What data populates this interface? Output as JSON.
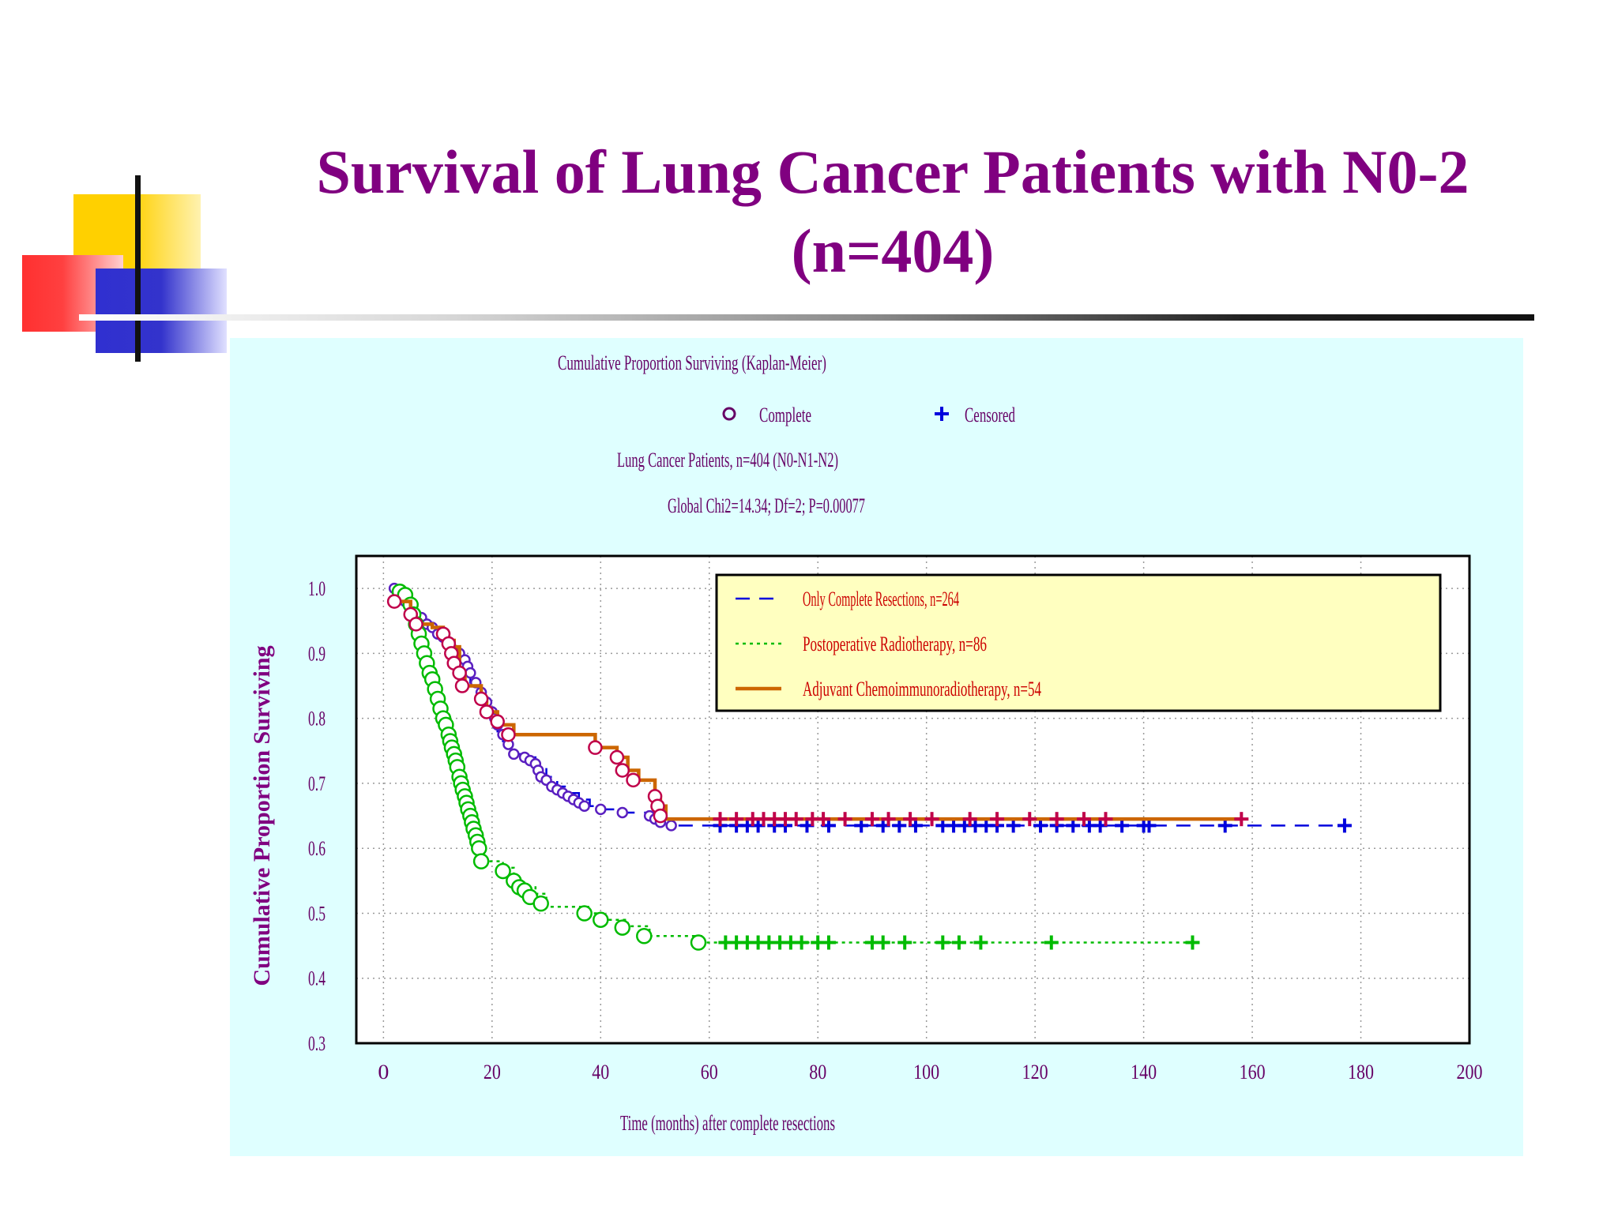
{
  "slide": {
    "title": "Survival of Lung Cancer Patients with N0-2\n(n=404)"
  },
  "colors": {
    "title": "#800080",
    "panel_background": "#dfffff",
    "legend_background": "#ffffc0",
    "series_blue": "#0000dd",
    "series_green": "#00bb00",
    "series_orange": "#cc6600",
    "complete_markers_blue_series": "#5a1fc0",
    "complete_markers_orange_series": "#c0004a",
    "censored_orange_series": "#c0004a"
  },
  "chart_data": {
    "type": "line",
    "subtype": "kaplan-meier step survival curves",
    "title": "Cumulative Proportion Surviving (Kaplan-Meier)",
    "marker_key": [
      {
        "symbol": "circle",
        "label": "Complete"
      },
      {
        "symbol": "plus",
        "label": "Censored"
      }
    ],
    "subtitle_lines": [
      "Lung Cancer Patients, n=404 (N0-N1-N2)",
      "Global Chi2=14.34; Df=2; P=0.00077"
    ],
    "xlabel": "Time (months) after complete resections",
    "ylabel": "Cumulative Proportion Surviving",
    "xlim": [
      -5,
      200
    ],
    "ylim": [
      0.3,
      1.05
    ],
    "xticks": [
      0,
      20,
      40,
      60,
      80,
      100,
      120,
      140,
      160,
      180,
      200
    ],
    "yticks": [
      0.3,
      0.4,
      0.5,
      0.6,
      0.7,
      0.8,
      0.9,
      1.0
    ],
    "xtick_labels": [
      "0",
      "20",
      "40",
      "60",
      "80",
      "100",
      "120",
      "140",
      "160",
      "180",
      "200"
    ],
    "ytick_labels": [
      "0.3",
      "0.4",
      "0.5",
      "0.6",
      "0.7",
      "0.8",
      "0.9",
      "1.0"
    ],
    "grid": true,
    "legend_position": "top-right",
    "series": [
      {
        "name": "Only Complete Resections,  n=264",
        "line_style": "dashed",
        "color": "#0000dd",
        "marker_color": "#5a1fc0",
        "steps": [
          [
            2,
            1.0
          ],
          [
            4,
            0.98
          ],
          [
            5,
            0.97
          ],
          [
            6,
            0.96
          ],
          [
            7,
            0.95
          ],
          [
            8,
            0.94
          ],
          [
            9,
            0.935
          ],
          [
            10,
            0.925
          ],
          [
            11,
            0.915
          ],
          [
            12,
            0.905
          ],
          [
            13,
            0.895
          ],
          [
            14,
            0.885
          ],
          [
            15,
            0.87
          ],
          [
            16,
            0.855
          ],
          [
            17,
            0.84
          ],
          [
            18,
            0.825
          ],
          [
            19,
            0.81
          ],
          [
            20,
            0.795
          ],
          [
            21,
            0.78
          ],
          [
            22,
            0.765
          ],
          [
            23,
            0.75
          ],
          [
            24,
            0.745
          ],
          [
            26,
            0.74
          ],
          [
            28,
            0.73
          ],
          [
            30,
            0.71
          ],
          [
            32,
            0.695
          ],
          [
            34,
            0.685
          ],
          [
            36,
            0.675
          ],
          [
            38,
            0.665
          ],
          [
            40,
            0.66
          ],
          [
            44,
            0.655
          ],
          [
            50,
            0.645
          ],
          [
            53,
            0.635
          ],
          [
            177,
            0.635
          ]
        ],
        "complete_events": [
          [
            2,
            1.0
          ],
          [
            3,
            0.99
          ],
          [
            4,
            0.98
          ],
          [
            5,
            0.975
          ],
          [
            6,
            0.96
          ],
          [
            7,
            0.955
          ],
          [
            8,
            0.945
          ],
          [
            9,
            0.94
          ],
          [
            10,
            0.93
          ],
          [
            11,
            0.925
          ],
          [
            12,
            0.915
          ],
          [
            13,
            0.905
          ],
          [
            14,
            0.9
          ],
          [
            15,
            0.89
          ],
          [
            15.5,
            0.88
          ],
          [
            16,
            0.87
          ],
          [
            17,
            0.855
          ],
          [
            18,
            0.84
          ],
          [
            19,
            0.825
          ],
          [
            20,
            0.81
          ],
          [
            20.5,
            0.8
          ],
          [
            21,
            0.79
          ],
          [
            22,
            0.775
          ],
          [
            23,
            0.76
          ],
          [
            24,
            0.745
          ],
          [
            26,
            0.74
          ],
          [
            27,
            0.735
          ],
          [
            28,
            0.73
          ],
          [
            28.5,
            0.72
          ],
          [
            29,
            0.71
          ],
          [
            30,
            0.705
          ],
          [
            31,
            0.695
          ],
          [
            32,
            0.69
          ],
          [
            33,
            0.685
          ],
          [
            34,
            0.68
          ],
          [
            35,
            0.675
          ],
          [
            36,
            0.67
          ],
          [
            37,
            0.665
          ],
          [
            40,
            0.66
          ],
          [
            44,
            0.655
          ],
          [
            49,
            0.65
          ],
          [
            50,
            0.645
          ],
          [
            51,
            0.64
          ],
          [
            53,
            0.635
          ]
        ],
        "censored": [
          62,
          65,
          67,
          69,
          72,
          74,
          78,
          82,
          88,
          92,
          95,
          98,
          103,
          105,
          107,
          109,
          111,
          113,
          116,
          121,
          124,
          127,
          130,
          132,
          136,
          140,
          141,
          155,
          177
        ]
      },
      {
        "name": "Postoperative Radiotherapy,  n=86",
        "line_style": "dotted",
        "color": "#00bb00",
        "marker_color": "#00bb00",
        "steps": [
          [
            3,
            1.0
          ],
          [
            4,
            0.99
          ],
          [
            5,
            0.96
          ],
          [
            6,
            0.93
          ],
          [
            7,
            0.9
          ],
          [
            8,
            0.87
          ],
          [
            9,
            0.84
          ],
          [
            10,
            0.81
          ],
          [
            11,
            0.78
          ],
          [
            12,
            0.75
          ],
          [
            13,
            0.72
          ],
          [
            14,
            0.7
          ],
          [
            15,
            0.67
          ],
          [
            16,
            0.64
          ],
          [
            17,
            0.6
          ],
          [
            18,
            0.58
          ],
          [
            22,
            0.57
          ],
          [
            24,
            0.55
          ],
          [
            26,
            0.54
          ],
          [
            28,
            0.53
          ],
          [
            30,
            0.51
          ],
          [
            38,
            0.5
          ],
          [
            41,
            0.49
          ],
          [
            45,
            0.48
          ],
          [
            49,
            0.465
          ],
          [
            59,
            0.455
          ],
          [
            149,
            0.455
          ]
        ],
        "complete_events": [
          [
            3,
            0.995
          ],
          [
            4,
            0.99
          ],
          [
            5,
            0.975
          ],
          [
            5.5,
            0.96
          ],
          [
            6,
            0.945
          ],
          [
            6.5,
            0.93
          ],
          [
            7,
            0.915
          ],
          [
            7.5,
            0.9
          ],
          [
            8,
            0.885
          ],
          [
            8.5,
            0.87
          ],
          [
            9,
            0.86
          ],
          [
            9.5,
            0.845
          ],
          [
            10,
            0.83
          ],
          [
            10.5,
            0.815
          ],
          [
            11,
            0.8
          ],
          [
            11.5,
            0.79
          ],
          [
            12,
            0.775
          ],
          [
            12.3,
            0.765
          ],
          [
            12.6,
            0.755
          ],
          [
            13,
            0.745
          ],
          [
            13.3,
            0.735
          ],
          [
            13.6,
            0.725
          ],
          [
            14,
            0.71
          ],
          [
            14.3,
            0.7
          ],
          [
            14.6,
            0.69
          ],
          [
            15,
            0.68
          ],
          [
            15.3,
            0.67
          ],
          [
            15.6,
            0.66
          ],
          [
            16,
            0.65
          ],
          [
            16.3,
            0.64
          ],
          [
            16.6,
            0.63
          ],
          [
            17,
            0.62
          ],
          [
            17.3,
            0.61
          ],
          [
            17.6,
            0.6
          ],
          [
            18,
            0.58
          ],
          [
            22,
            0.565
          ],
          [
            24,
            0.55
          ],
          [
            25,
            0.54
          ],
          [
            26,
            0.535
          ],
          [
            27,
            0.525
          ],
          [
            29,
            0.515
          ],
          [
            37,
            0.5
          ],
          [
            40,
            0.49
          ],
          [
            44,
            0.478
          ],
          [
            48,
            0.465
          ],
          [
            58,
            0.455
          ]
        ],
        "censored": [
          63,
          65,
          67,
          69,
          71,
          73,
          75,
          77,
          80,
          82,
          90,
          92,
          96,
          103,
          106,
          110,
          123,
          149
        ]
      },
      {
        "name": "Adjuvant Chemoimmunoradiotherapy, n=54",
        "line_style": "solid",
        "color": "#cc6600",
        "marker_color": "#c0004a",
        "steps": [
          [
            2,
            0.98
          ],
          [
            5,
            0.96
          ],
          [
            6,
            0.945
          ],
          [
            9,
            0.94
          ],
          [
            11,
            0.93
          ],
          [
            12,
            0.92
          ],
          [
            13,
            0.91
          ],
          [
            14,
            0.87
          ],
          [
            15,
            0.85
          ],
          [
            18,
            0.83
          ],
          [
            19,
            0.81
          ],
          [
            21,
            0.79
          ],
          [
            24,
            0.775
          ],
          [
            39,
            0.755
          ],
          [
            43,
            0.74
          ],
          [
            45,
            0.72
          ],
          [
            47,
            0.705
          ],
          [
            50,
            0.68
          ],
          [
            51,
            0.665
          ],
          [
            52,
            0.645
          ],
          [
            158,
            0.645
          ]
        ],
        "complete_events": [
          [
            2,
            0.98
          ],
          [
            5,
            0.96
          ],
          [
            6,
            0.945
          ],
          [
            11,
            0.93
          ],
          [
            12,
            0.915
          ],
          [
            12.5,
            0.9
          ],
          [
            13,
            0.885
          ],
          [
            14,
            0.87
          ],
          [
            14.5,
            0.85
          ],
          [
            18,
            0.83
          ],
          [
            19,
            0.81
          ],
          [
            21,
            0.795
          ],
          [
            23,
            0.775
          ],
          [
            39,
            0.755
          ],
          [
            43,
            0.74
          ],
          [
            44,
            0.72
          ],
          [
            46,
            0.705
          ],
          [
            50,
            0.68
          ],
          [
            50.5,
            0.665
          ],
          [
            51,
            0.65
          ]
        ],
        "censored": [
          62,
          65,
          68,
          70,
          72,
          74,
          76,
          79,
          81,
          85,
          90,
          93,
          97,
          101,
          108,
          113,
          119,
          124,
          129,
          133,
          158
        ]
      }
    ]
  }
}
